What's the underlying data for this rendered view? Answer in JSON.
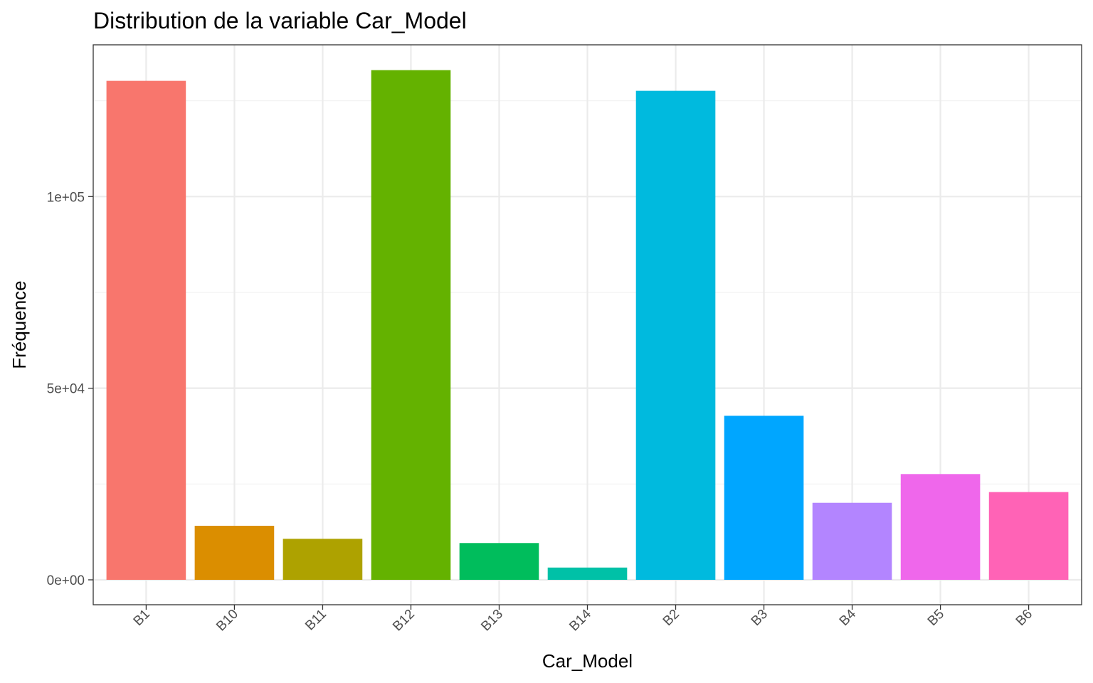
{
  "chart_data": {
    "type": "bar",
    "title": "Distribution de la variable Car_Model",
    "xlabel": "Car_Model",
    "ylabel": "Fréquence",
    "categories": [
      "B1",
      "B10",
      "B11",
      "B12",
      "B13",
      "B14",
      "B2",
      "B3",
      "B4",
      "B5",
      "B6"
    ],
    "values": [
      130200,
      14100,
      10700,
      133000,
      9600,
      3200,
      127600,
      42800,
      20100,
      27600,
      22900
    ],
    "colors": [
      "#F8766D",
      "#DB8E00",
      "#AEA200",
      "#64B200",
      "#00BD5C",
      "#00C1A7",
      "#00BADE",
      "#00A6FF",
      "#B385FF",
      "#EF67EB",
      "#FF63B6"
    ],
    "ylim": [
      -6500,
      139600
    ],
    "y_ticks": [
      0,
      50000,
      100000
    ],
    "y_tick_labels": [
      "0e+00",
      "5e+04",
      "1e+05"
    ],
    "grid": true,
    "legend": "none",
    "theme": "bw"
  }
}
